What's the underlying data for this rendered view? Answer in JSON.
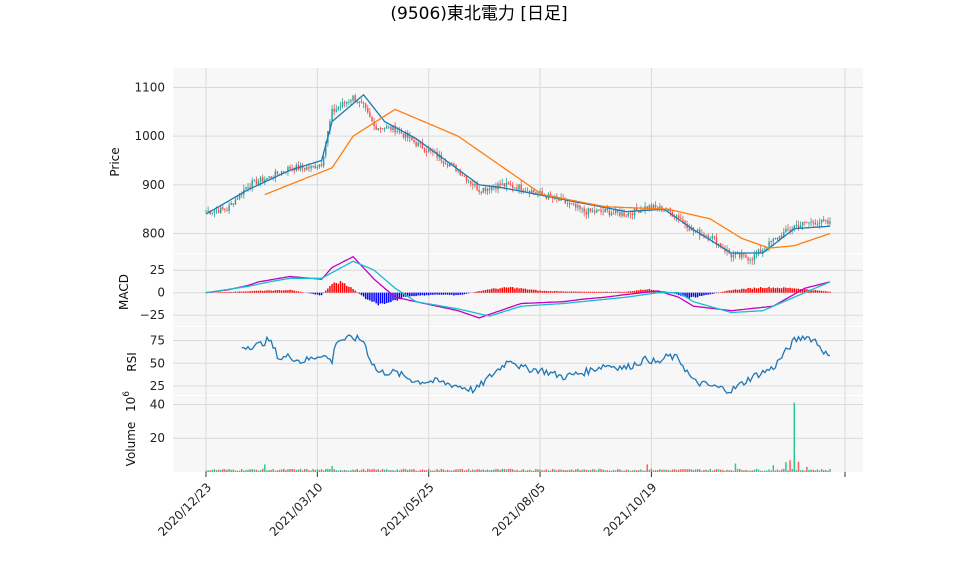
{
  "chart_data": {
    "type": "candlestick",
    "title": "(9506)東北電力 [日足]",
    "colors": {
      "up": "#26a69a",
      "down": "#ef5350",
      "ma_short": "#1f77b4",
      "ma_long": "#ff7f0e",
      "macd": "#c300c3",
      "signal": "#17becf",
      "hist_pos": "#ff0000",
      "hist_neg": "#0000ff",
      "rsi": "#1f77b4",
      "vol_up": "#26c98a",
      "vol_down": "#ff5a5a"
    },
    "x_ticks": [
      "2020/12/23",
      "2021/03/10",
      "2021/05/25",
      "2021/08/05",
      "2021/10/19"
    ],
    "price": {
      "ylabel": "Price",
      "ylim": [
        760,
        1140
      ],
      "yticks": [
        "1100",
        "1000",
        "900",
        "800"
      ],
      "ytick_values": [
        1100,
        1000,
        900,
        800
      ],
      "close_keypoints": [
        [
          0,
          845
        ],
        [
          10,
          850
        ],
        [
          20,
          900
        ],
        [
          30,
          915
        ],
        [
          40,
          935
        ],
        [
          50,
          935
        ],
        [
          55,
          945
        ],
        [
          60,
          1050
        ],
        [
          70,
          1080
        ],
        [
          75,
          1060
        ],
        [
          80,
          1020
        ],
        [
          90,
          1015
        ],
        [
          100,
          985
        ],
        [
          110,
          960
        ],
        [
          120,
          930
        ],
        [
          130,
          890
        ],
        [
          140,
          900
        ],
        [
          150,
          895
        ],
        [
          160,
          880
        ],
        [
          170,
          865
        ],
        [
          180,
          845
        ],
        [
          190,
          845
        ],
        [
          200,
          840
        ],
        [
          210,
          855
        ],
        [
          218,
          850
        ],
        [
          225,
          835
        ],
        [
          232,
          805
        ],
        [
          240,
          795
        ],
        [
          250,
          755
        ],
        [
          260,
          750
        ],
        [
          270,
          785
        ],
        [
          280,
          815
        ],
        [
          290,
          825
        ],
        [
          297,
          820
        ]
      ],
      "ma_short_keypoints": [
        [
          0,
          840
        ],
        [
          20,
          890
        ],
        [
          40,
          930
        ],
        [
          55,
          950
        ],
        [
          60,
          1030
        ],
        [
          75,
          1085
        ],
        [
          85,
          1030
        ],
        [
          100,
          995
        ],
        [
          130,
          900
        ],
        [
          140,
          895
        ],
        [
          170,
          870
        ],
        [
          200,
          845
        ],
        [
          218,
          850
        ],
        [
          232,
          808
        ],
        [
          250,
          760
        ],
        [
          265,
          760
        ],
        [
          280,
          810
        ],
        [
          297,
          815
        ]
      ],
      "ma_long_keypoints": [
        [
          28,
          880
        ],
        [
          60,
          935
        ],
        [
          70,
          1000
        ],
        [
          90,
          1055
        ],
        [
          120,
          1000
        ],
        [
          160,
          880
        ],
        [
          190,
          855
        ],
        [
          220,
          850
        ],
        [
          240,
          830
        ],
        [
          255,
          790
        ],
        [
          268,
          770
        ],
        [
          280,
          775
        ],
        [
          297,
          800
        ]
      ]
    },
    "macd": {
      "ylabel": "MACD",
      "ylim": [
        -37,
        43
      ],
      "yticks": [
        "25",
        "0",
        "−25"
      ],
      "ytick_values": [
        25,
        0,
        -25
      ],
      "macd_keypoints": [
        [
          0,
          0
        ],
        [
          10,
          3
        ],
        [
          20,
          8
        ],
        [
          25,
          12
        ],
        [
          30,
          14
        ],
        [
          40,
          18
        ],
        [
          50,
          16
        ],
        [
          55,
          15
        ],
        [
          60,
          28
        ],
        [
          70,
          40
        ],
        [
          80,
          15
        ],
        [
          90,
          -5
        ],
        [
          100,
          -10
        ],
        [
          120,
          -20
        ],
        [
          130,
          -28
        ],
        [
          140,
          -20
        ],
        [
          150,
          -12
        ],
        [
          170,
          -10
        ],
        [
          180,
          -7
        ],
        [
          190,
          -5
        ],
        [
          200,
          -2
        ],
        [
          215,
          2
        ],
        [
          225,
          -5
        ],
        [
          232,
          -15
        ],
        [
          250,
          -20
        ],
        [
          270,
          -15
        ],
        [
          285,
          5
        ],
        [
          297,
          12
        ]
      ],
      "signal_keypoints": [
        [
          0,
          0
        ],
        [
          20,
          7
        ],
        [
          30,
          12
        ],
        [
          40,
          16
        ],
        [
          55,
          16
        ],
        [
          70,
          35
        ],
        [
          80,
          25
        ],
        [
          90,
          5
        ],
        [
          100,
          -10
        ],
        [
          120,
          -18
        ],
        [
          135,
          -26
        ],
        [
          150,
          -15
        ],
        [
          170,
          -12
        ],
        [
          200,
          -5
        ],
        [
          215,
          0
        ],
        [
          225,
          0
        ],
        [
          232,
          -10
        ],
        [
          250,
          -22
        ],
        [
          265,
          -20
        ],
        [
          285,
          0
        ],
        [
          297,
          12
        ]
      ],
      "hist_keypoints": [
        [
          0,
          0
        ],
        [
          25,
          2
        ],
        [
          40,
          3
        ],
        [
          55,
          -3
        ],
        [
          60,
          10
        ],
        [
          65,
          12
        ],
        [
          70,
          4
        ],
        [
          78,
          -10
        ],
        [
          85,
          -14
        ],
        [
          95,
          -4
        ],
        [
          110,
          -2
        ],
        [
          120,
          -3
        ],
        [
          135,
          4
        ],
        [
          145,
          6
        ],
        [
          160,
          2
        ],
        [
          180,
          1
        ],
        [
          200,
          1
        ],
        [
          210,
          4
        ],
        [
          220,
          1
        ],
        [
          230,
          -6
        ],
        [
          240,
          -2
        ],
        [
          250,
          3
        ],
        [
          265,
          6
        ],
        [
          280,
          5
        ],
        [
          297,
          1
        ]
      ]
    },
    "rsi": {
      "ylabel": "RSI",
      "ylim": [
        15,
        90
      ],
      "yticks": [
        "75",
        "50",
        "25"
      ],
      "ytick_values": [
        75,
        50,
        25
      ],
      "keypoints": [
        [
          17,
          68
        ],
        [
          25,
          70
        ],
        [
          30,
          76
        ],
        [
          35,
          55
        ],
        [
          40,
          58
        ],
        [
          45,
          52
        ],
        [
          50,
          55
        ],
        [
          55,
          60
        ],
        [
          60,
          52
        ],
        [
          62,
          75
        ],
        [
          70,
          78
        ],
        [
          75,
          75
        ],
        [
          78,
          55
        ],
        [
          82,
          40
        ],
        [
          90,
          40
        ],
        [
          100,
          30
        ],
        [
          110,
          30
        ],
        [
          120,
          25
        ],
        [
          128,
          20
        ],
        [
          135,
          35
        ],
        [
          145,
          55
        ],
        [
          150,
          45
        ],
        [
          160,
          42
        ],
        [
          170,
          35
        ],
        [
          180,
          40
        ],
        [
          190,
          48
        ],
        [
          200,
          45
        ],
        [
          210,
          55
        ],
        [
          215,
          50
        ],
        [
          220,
          58
        ],
        [
          225,
          55
        ],
        [
          232,
          30
        ],
        [
          240,
          25
        ],
        [
          250,
          20
        ],
        [
          260,
          35
        ],
        [
          270,
          45
        ],
        [
          280,
          75
        ],
        [
          285,
          80
        ],
        [
          290,
          75
        ],
        [
          297,
          55
        ]
      ]
    },
    "volume": {
      "ylabel": "Volume",
      "exponent": "6",
      "ylim": [
        0,
        45
      ],
      "yticks": [
        "40",
        "20"
      ],
      "ytick_values": [
        40,
        20
      ],
      "baseline": 1.2,
      "spikes": [
        [
          28,
          4.5
        ],
        [
          60,
          3.5
        ],
        [
          165,
          1.8
        ],
        [
          210,
          4.5
        ],
        [
          252,
          5
        ],
        [
          270,
          4
        ],
        [
          276,
          5.8
        ],
        [
          278,
          7
        ],
        [
          280,
          41
        ],
        [
          282,
          6
        ],
        [
          286,
          3
        ]
      ]
    },
    "n_days": 298
  }
}
